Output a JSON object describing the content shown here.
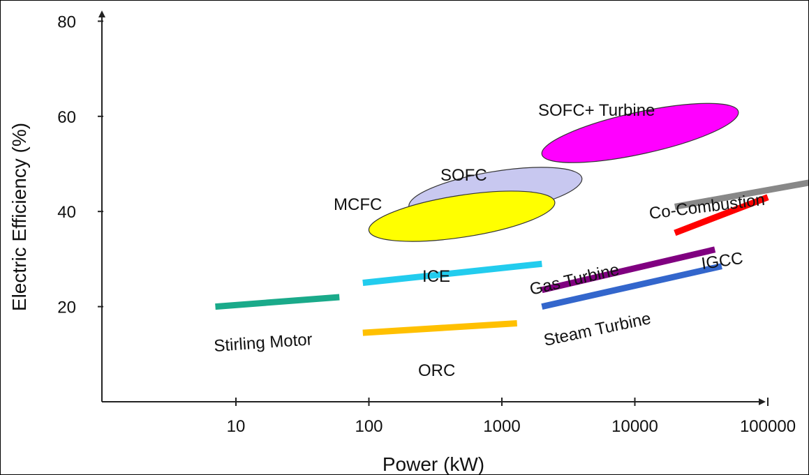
{
  "chart_data": {
    "type": "scatter",
    "xlabel": "Power (kW)",
    "ylabel": "Electric Efficiency (%)",
    "x_scale": "log",
    "xlim": [
      1,
      100000
    ],
    "ylim": [
      0,
      85
    ],
    "x_ticks": [
      {
        "value": 10,
        "label": "10"
      },
      {
        "value": 100,
        "label": "100"
      },
      {
        "value": 1000,
        "label": "1000"
      },
      {
        "value": 10000,
        "label": "10000"
      },
      {
        "value": 100000,
        "label": "100000"
      }
    ],
    "y_ticks": [
      {
        "value": 20,
        "label": "20"
      },
      {
        "value": 40,
        "label": "40"
      },
      {
        "value": 60,
        "label": "60"
      },
      {
        "value": 80,
        "label": "80"
      }
    ],
    "grid": false,
    "legend": "none",
    "ranges": [
      {
        "name": "SOFC+ Turbine",
        "shape": "ellipse",
        "color": "#ff00ff",
        "x": [
          2000,
          60000
        ],
        "y": [
          52,
          61
        ]
      },
      {
        "name": "SOFC",
        "shape": "ellipse",
        "color": "#c8c8f0",
        "x": [
          200,
          4000
        ],
        "y": [
          41,
          47
        ]
      },
      {
        "name": "MCFC",
        "shape": "ellipse",
        "color": "#ffff00",
        "x": [
          100,
          2500
        ],
        "y": [
          36,
          42
        ]
      },
      {
        "name": "Co-Combustion",
        "shape": "line",
        "color": "#888888",
        "x": [
          20000,
          250000
        ],
        "y": [
          41,
          46.5
        ]
      },
      {
        "name": "IGCC",
        "shape": "line",
        "color": "#ff0000",
        "x": [
          20000,
          100000
        ],
        "y": [
          35.5,
          43
        ]
      },
      {
        "name": "Gas Turbine",
        "shape": "line",
        "color": "#800080",
        "x": [
          2000,
          40000
        ],
        "y": [
          23.5,
          32
        ]
      },
      {
        "name": "Steam Turbine",
        "shape": "line",
        "color": "#3366cc",
        "x": [
          2000,
          45000
        ],
        "y": [
          20,
          28.5
        ]
      },
      {
        "name": "ICE",
        "shape": "line",
        "color": "#22ccee",
        "x": [
          90,
          2000
        ],
        "y": [
          25,
          29
        ]
      },
      {
        "name": "Stirling Motor",
        "shape": "line",
        "color": "#1aaa8a",
        "x": [
          7,
          60
        ],
        "y": [
          20,
          22
        ]
      },
      {
        "name": "ORC",
        "shape": "line",
        "color": "#ffc000",
        "x": [
          90,
          1300
        ],
        "y": [
          14.5,
          16.5
        ]
      }
    ]
  }
}
